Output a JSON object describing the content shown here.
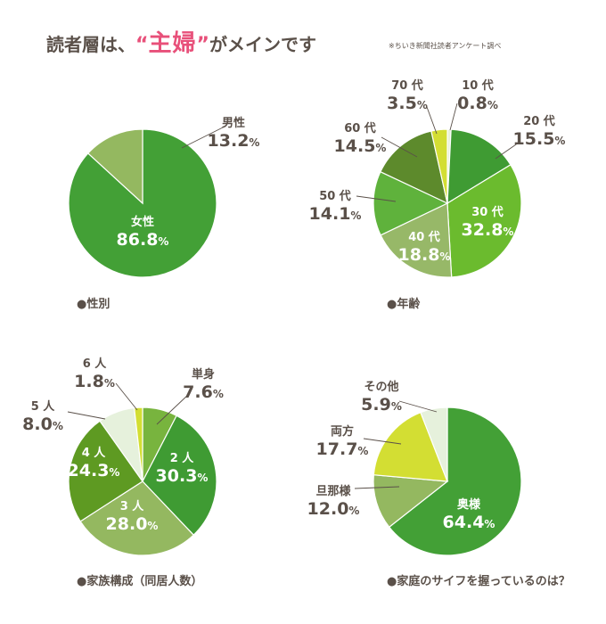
{
  "header": {
    "title_before": "読者層は、",
    "quote_open": "“",
    "title_highlight": "主婦",
    "quote_close": "”",
    "title_after": "がメインです",
    "source": "※ちいき新聞社読者アンケート調べ"
  },
  "chart_data": [
    {
      "type": "pie",
      "caption": "●性別",
      "slices": [
        {
          "label": "女性",
          "value": 86.8,
          "display": "86.8",
          "color": "#43a036",
          "label_inside": true
        },
        {
          "label": "男性",
          "value": 13.2,
          "display": "13.2",
          "color": "#94b860",
          "label_inside": false
        }
      ]
    },
    {
      "type": "pie",
      "caption": "●年齢",
      "slices": [
        {
          "label": "10 代",
          "value": 0.8,
          "display": "0.8",
          "color": "#e8f0d8",
          "label_inside": false
        },
        {
          "label": "20 代",
          "value": 15.5,
          "display": "15.5",
          "color": "#3f9b33",
          "label_inside": false
        },
        {
          "label": "30 代",
          "value": 32.8,
          "display": "32.8",
          "color": "#6bbb2e",
          "label_inside": true
        },
        {
          "label": "40 代",
          "value": 18.8,
          "display": "18.8",
          "color": "#97b868",
          "label_inside": true
        },
        {
          "label": "50 代",
          "value": 14.1,
          "display": "14.1",
          "color": "#5fb23c",
          "label_inside": false
        },
        {
          "label": "60 代",
          "value": 14.5,
          "display": "14.5",
          "color": "#5d8a2c",
          "label_inside": false
        },
        {
          "label": "70 代",
          "value": 3.5,
          "display": "3.5",
          "color": "#d3de33",
          "label_inside": false
        }
      ]
    },
    {
      "type": "pie",
      "caption": "●家族構成（同居人数）",
      "slices": [
        {
          "label": "単身",
          "value": 7.6,
          "display": "7.6",
          "color": "#78b43e",
          "label_inside": false
        },
        {
          "label": "2 人",
          "value": 30.3,
          "display": "30.3",
          "color": "#3f9b33",
          "label_inside": true
        },
        {
          "label": "3 人",
          "value": 28.0,
          "display": "28.0",
          "color": "#94b860",
          "label_inside": true
        },
        {
          "label": "4 人",
          "value": 24.3,
          "display": "24.3",
          "color": "#5e9a22",
          "label_inside": true
        },
        {
          "label": "5 人",
          "value": 8.0,
          "display": "8.0",
          "color": "#e6f1dc",
          "label_inside": false
        },
        {
          "label": "6 人",
          "value": 1.8,
          "display": "1.8",
          "color": "#d3de33",
          "label_inside": false
        }
      ]
    },
    {
      "type": "pie",
      "caption": "●家庭のサイフを握っているのは？",
      "slices": [
        {
          "label": "奥様",
          "value": 64.4,
          "display": "64.4",
          "color": "#43a036",
          "label_inside": true
        },
        {
          "label": "旦那様",
          "value": 12.0,
          "display": "12.0",
          "color": "#94b860",
          "label_inside": false
        },
        {
          "label": "両方",
          "value": 17.7,
          "display": "17.7",
          "color": "#d3de33",
          "label_inside": false
        },
        {
          "label": "その他",
          "value": 5.9,
          "display": "5.9",
          "color": "#e6f1dc",
          "label_inside": false
        }
      ]
    }
  ],
  "percent_unit": "%"
}
